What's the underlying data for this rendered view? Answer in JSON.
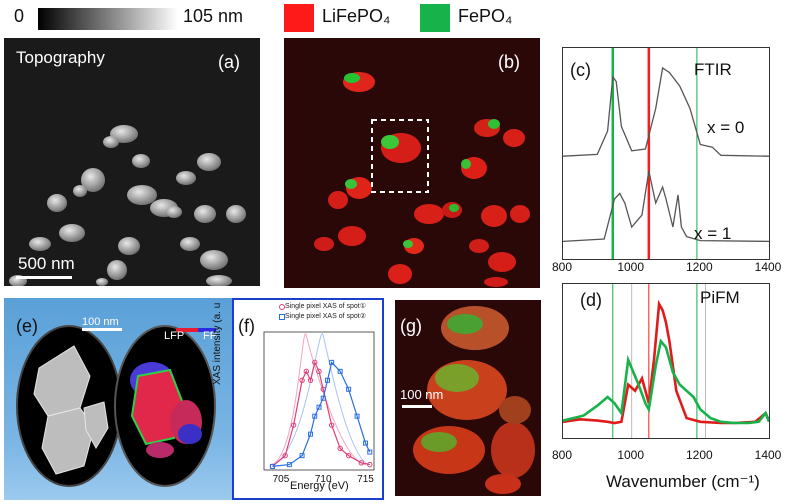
{
  "colorbar": {
    "min_label": "0",
    "max_label": "105 nm"
  },
  "legend": [
    {
      "name": "LiFePO₄",
      "color": "#ff1a1a"
    },
    {
      "name": "FePO₄",
      "color": "#17b24a"
    }
  ],
  "panel_a": {
    "title": "Topography",
    "letter": "(a)",
    "scale": "500 nm"
  },
  "panel_b": {
    "letter": "(b)"
  },
  "panel_c": {
    "letter": "(c)",
    "title": "FTIR",
    "curve_top": "x = 0",
    "curve_bottom": "x = 1"
  },
  "panel_d": {
    "letter": "(d)",
    "title": "PiFM",
    "xlabel": "Wavenumber (cm⁻¹)"
  },
  "panel_e": {
    "letter": "(e)",
    "scale": "100 nm",
    "legend_lfp": "LFP",
    "legend_fp": "FP"
  },
  "panel_f": {
    "letter": "(f)",
    "legend_1": "Single pixel XAS of spot①",
    "legend_2": "Single pixel XAS of spot②",
    "ylabel": "XAS intensity (a. u",
    "xlabel": "Energy (eV)"
  },
  "panel_g": {
    "letter": "(g)",
    "scale": "100 nm"
  },
  "chart_data": [
    {
      "type": "line",
      "title": "FTIR",
      "xlim": [
        800,
        1400
      ],
      "x_ticks": [
        "800",
        "1000",
        "1200",
        "1400"
      ],
      "vertical_markers": [
        {
          "x": 945,
          "color": "#17b24a"
        },
        {
          "x": 1050,
          "color": "#ff1a1a"
        },
        {
          "x": 1190,
          "color": "#17b24a"
        }
      ],
      "series": [
        {
          "name": "x = 0",
          "x": [
            800,
            900,
            930,
            945,
            955,
            970,
            1000,
            1040,
            1070,
            1090,
            1110,
            1140,
            1170,
            1200,
            1235,
            1260,
            1400
          ],
          "y": [
            0.02,
            0.04,
            0.3,
            0.9,
            0.85,
            0.35,
            0.08,
            0.1,
            0.55,
            1.0,
            0.95,
            0.8,
            0.55,
            0.15,
            0.12,
            0.03,
            0.02
          ]
        },
        {
          "name": "x = 1",
          "x": [
            800,
            920,
            950,
            965,
            980,
            1000,
            1030,
            1050,
            1070,
            1090,
            1100,
            1120,
            1135,
            1145,
            1160,
            1200,
            1400
          ],
          "y": [
            0.02,
            0.05,
            0.55,
            0.62,
            0.5,
            0.2,
            0.35,
            0.9,
            0.5,
            0.7,
            0.55,
            0.2,
            0.6,
            0.2,
            0.08,
            0.03,
            0.02
          ]
        }
      ]
    },
    {
      "type": "line",
      "title": "PiFM",
      "xlabel": "Wavenumber (cm⁻¹)",
      "xlim": [
        800,
        1400
      ],
      "x_ticks": [
        "800",
        "1000",
        "1200",
        "1400"
      ],
      "series": [
        {
          "color": "#e01b1b",
          "x": [
            800,
            850,
            900,
            930,
            950,
            970,
            990,
            1010,
            1030,
            1050,
            1065,
            1080,
            1090,
            1100,
            1110,
            1130,
            1160,
            1200,
            1260,
            1300,
            1360,
            1390,
            1400
          ],
          "y": [
            0.05,
            0.07,
            0.06,
            0.05,
            0.04,
            0.05,
            0.35,
            0.3,
            0.4,
            0.2,
            0.55,
            1.0,
            0.95,
            0.85,
            0.7,
            0.3,
            0.08,
            0.05,
            0.04,
            0.04,
            0.05,
            0.12,
            0.06
          ]
        },
        {
          "color": "#17b24a",
          "x": [
            800,
            830,
            860,
            900,
            930,
            950,
            970,
            990,
            1005,
            1020,
            1040,
            1050,
            1070,
            1085,
            1100,
            1120,
            1140,
            1160,
            1180,
            1200,
            1230,
            1260,
            1300,
            1340,
            1370,
            1390,
            1400
          ],
          "y": [
            0.06,
            0.08,
            0.1,
            0.18,
            0.25,
            0.2,
            0.12,
            0.55,
            0.45,
            0.35,
            0.2,
            0.15,
            0.5,
            0.7,
            0.65,
            0.45,
            0.35,
            0.3,
            0.25,
            0.15,
            0.08,
            0.05,
            0.04,
            0.04,
            0.05,
            0.12,
            0.05
          ]
        }
      ]
    },
    {
      "type": "line",
      "xlabel": "Energy (eV)",
      "ylabel": "XAS intensity (a. u",
      "xlim": [
        703,
        716
      ],
      "x_ticks": [
        "705",
        "710",
        "715"
      ],
      "series": [
        {
          "name": "Single pixel XAS of spot①",
          "color": "#e0407a",
          "x": [
            704,
            705.5,
            706.5,
            707.5,
            708,
            708.5,
            709,
            709.5,
            710,
            711,
            712,
            713,
            714.5,
            715.5
          ],
          "y": [
            0.02,
            0.08,
            0.25,
            0.5,
            0.55,
            0.5,
            0.6,
            0.55,
            0.45,
            0.25,
            0.12,
            0.08,
            0.04,
            0.03
          ]
        },
        {
          "name": "Single pixel XAS of spot②",
          "color": "#2a6fe0",
          "x": [
            704,
            706,
            707.5,
            708.5,
            709,
            709.5,
            710,
            710.5,
            711,
            712,
            713,
            714,
            715,
            715.5
          ],
          "y": [
            0.02,
            0.03,
            0.08,
            0.2,
            0.3,
            0.35,
            0.4,
            0.5,
            0.6,
            0.55,
            0.45,
            0.3,
            0.15,
            0.1
          ]
        }
      ]
    }
  ]
}
